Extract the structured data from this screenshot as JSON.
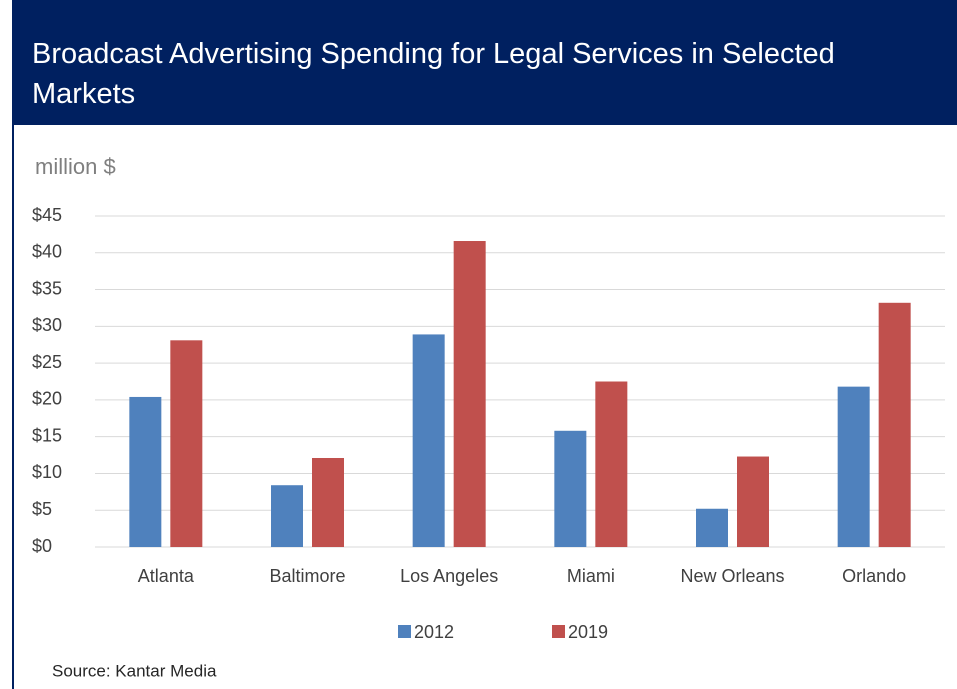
{
  "chart_data": {
    "type": "bar",
    "title": "Broadcast Advertising Spending for Legal Services in Selected Markets",
    "y_label": "million $",
    "source": "Source: Kantar Media",
    "categories": [
      "Atlanta",
      "Baltimore",
      "Los Angeles",
      "Miami",
      "New Orleans",
      "Orlando"
    ],
    "series": [
      {
        "name": "2012",
        "color": "#4f81bd",
        "values": [
          20.4,
          8.4,
          28.9,
          15.8,
          5.2,
          21.8
        ]
      },
      {
        "name": "2019",
        "color": "#c0504d",
        "values": [
          28.1,
          12.1,
          41.6,
          22.5,
          12.3,
          33.2
        ]
      }
    ],
    "ylim": [
      0,
      45
    ],
    "yticks": [
      {
        "value": 0,
        "label": "$0"
      },
      {
        "value": 5,
        "label": "$5"
      },
      {
        "value": 10,
        "label": "$10"
      },
      {
        "value": 15,
        "label": "$15"
      },
      {
        "value": 20,
        "label": "$20"
      },
      {
        "value": 25,
        "label": "$25"
      },
      {
        "value": 30,
        "label": "$30"
      },
      {
        "value": 35,
        "label": "$35"
      },
      {
        "value": 40,
        "label": "$40"
      },
      {
        "value": 45,
        "label": "$45"
      }
    ],
    "grid": true,
    "legend": "bottom"
  }
}
